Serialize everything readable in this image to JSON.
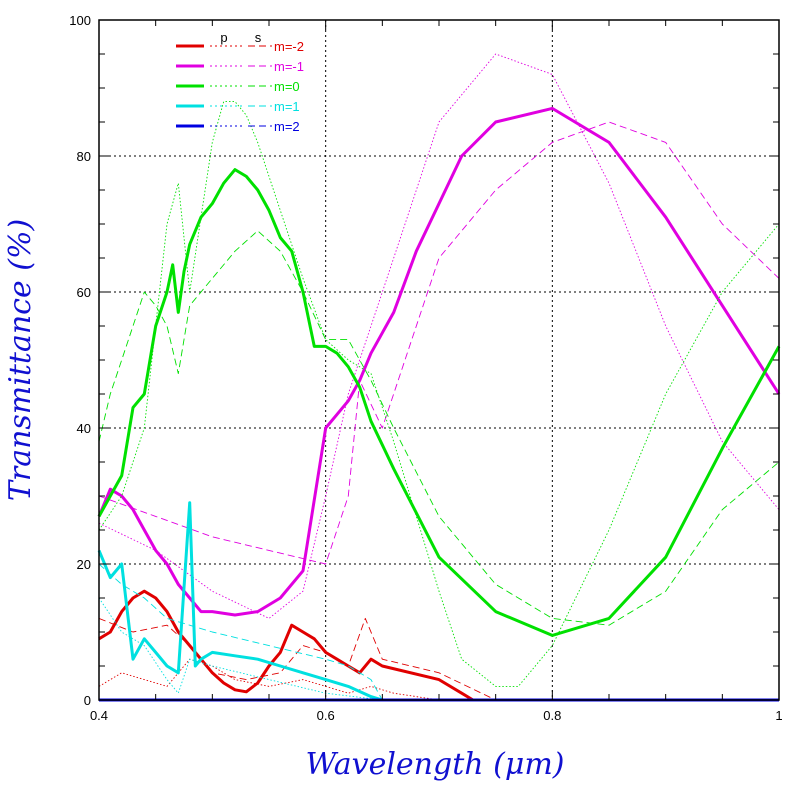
{
  "chart_data": {
    "type": "line",
    "xlabel": "Wavelength (μm)",
    "ylabel": "Transmittance (%)",
    "xlim": [
      0.4,
      1.0
    ],
    "ylim": [
      0,
      100
    ],
    "x_ticks": [
      "0.4",
      "0.6",
      "0.8",
      "1"
    ],
    "y_ticks": [
      "0",
      "20",
      "40",
      "60",
      "80",
      "100"
    ],
    "grid": true,
    "legend": {
      "placement": "top-left",
      "columns": [
        "p",
        "s"
      ]
    },
    "series": [
      {
        "name": "m=-2",
        "color": "#e00000",
        "p": {
          "x": [
            0.4,
            0.41,
            0.42,
            0.43,
            0.44,
            0.45,
            0.46,
            0.47,
            0.48,
            0.49,
            0.5,
            0.51,
            0.52,
            0.53,
            0.54,
            0.55,
            0.56,
            0.57,
            0.58,
            0.59,
            0.6,
            0.61,
            0.62,
            0.63,
            0.64,
            0.65,
            0.7,
            0.72,
            0.73,
            1.0
          ],
          "y": [
            9,
            10,
            13,
            15,
            16,
            15,
            13,
            10,
            8,
            6,
            4,
            2.5,
            1.5,
            1.2,
            2.5,
            5,
            7,
            11,
            10,
            9,
            7,
            6,
            5,
            4,
            6,
            5,
            3,
            1,
            0,
            0
          ]
        },
        "s": {
          "x": [
            0.4,
            0.43,
            0.46,
            0.48,
            0.5,
            0.53,
            0.56,
            0.58,
            0.6,
            0.62,
            0.635,
            0.65,
            0.7,
            0.75,
            1.0
          ],
          "y": [
            12,
            10,
            11,
            8,
            4,
            3,
            4,
            8,
            7,
            5,
            12,
            6,
            4,
            0,
            0
          ]
        },
        "t": {
          "x": [
            0.4,
            0.42,
            0.44,
            0.46,
            0.48,
            0.5,
            0.52,
            0.55,
            0.58,
            0.6,
            0.62,
            0.64,
            0.66,
            0.7,
            1.0
          ],
          "y": [
            2,
            4,
            3,
            2,
            6,
            5,
            3,
            2,
            3,
            2,
            1,
            2,
            1,
            0,
            0
          ]
        }
      },
      {
        "name": "m=-1",
        "color": "#e000e0",
        "p": {
          "x": [
            0.4,
            0.41,
            0.42,
            0.43,
            0.44,
            0.45,
            0.46,
            0.47,
            0.48,
            0.49,
            0.5,
            0.52,
            0.54,
            0.56,
            0.58,
            0.6,
            0.61,
            0.62,
            0.63,
            0.64,
            0.66,
            0.68,
            0.7,
            0.72,
            0.75,
            0.8,
            0.85,
            0.9,
            0.95,
            1.0
          ],
          "y": [
            27,
            31,
            30,
            28,
            25,
            22,
            20,
            17,
            15,
            13,
            13,
            12.5,
            13,
            15,
            19,
            40,
            42,
            44,
            47,
            51,
            57,
            66,
            73,
            80,
            85,
            87,
            82,
            71,
            58,
            45
          ]
        },
        "s": {
          "x": [
            0.4,
            0.45,
            0.5,
            0.55,
            0.6,
            0.62,
            0.63,
            0.65,
            0.7,
            0.75,
            0.8,
            0.85,
            0.9,
            0.95,
            1.0
          ],
          "y": [
            30,
            27,
            24,
            22,
            20,
            30,
            47,
            40,
            65,
            75,
            82,
            85,
            82,
            70,
            62
          ]
        },
        "t": {
          "x": [
            0.4,
            0.45,
            0.5,
            0.55,
            0.58,
            0.6,
            0.62,
            0.64,
            0.66,
            0.7,
            0.75,
            0.8,
            0.85,
            0.9,
            0.95,
            1.0
          ],
          "y": [
            26,
            22,
            16,
            12,
            16,
            30,
            45,
            55,
            65,
            85,
            95,
            92,
            76,
            55,
            38,
            28
          ]
        }
      },
      {
        "name": "m=0",
        "color": "#00e000",
        "p": {
          "x": [
            0.4,
            0.41,
            0.42,
            0.43,
            0.44,
            0.45,
            0.46,
            0.465,
            0.47,
            0.475,
            0.48,
            0.49,
            0.5,
            0.51,
            0.52,
            0.53,
            0.54,
            0.55,
            0.56,
            0.57,
            0.58,
            0.59,
            0.6,
            0.61,
            0.62,
            0.63,
            0.64,
            0.66,
            0.7,
            0.75,
            0.8,
            0.85,
            0.9,
            0.95,
            1.0
          ],
          "y": [
            27,
            30,
            33,
            43,
            45,
            55,
            60,
            64,
            57,
            63,
            67,
            71,
            73,
            76,
            78,
            77,
            75,
            72,
            68,
            66,
            60,
            52,
            52,
            51,
            49,
            46,
            41,
            34,
            21,
            13,
            9.5,
            12,
            21,
            37,
            52
          ]
        },
        "s": {
          "x": [
            0.4,
            0.41,
            0.42,
            0.43,
            0.44,
            0.45,
            0.46,
            0.47,
            0.48,
            0.5,
            0.52,
            0.54,
            0.56,
            0.58,
            0.6,
            0.62,
            0.64,
            0.66,
            0.7,
            0.75,
            0.8,
            0.85,
            0.9,
            0.95,
            1.0
          ],
          "y": [
            38,
            45,
            50,
            55,
            60,
            58,
            55,
            48,
            58,
            62,
            66,
            69,
            66,
            60,
            53,
            53,
            47,
            40,
            27,
            17,
            12,
            11,
            16,
            28,
            35
          ]
        },
        "t": {
          "x": [
            0.4,
            0.42,
            0.44,
            0.46,
            0.47,
            0.48,
            0.5,
            0.51,
            0.52,
            0.53,
            0.54,
            0.56,
            0.58,
            0.6,
            0.62,
            0.64,
            0.66,
            0.7,
            0.72,
            0.75,
            0.77,
            0.8,
            0.85,
            0.9,
            0.95,
            1.0
          ],
          "y": [
            25,
            30,
            40,
            70,
            76,
            60,
            82,
            88,
            88,
            86,
            82,
            72,
            62,
            53,
            50,
            48,
            38,
            16,
            6,
            2,
            2,
            8,
            25,
            45,
            60,
            70
          ]
        }
      },
      {
        "name": "m=1",
        "color": "#00e0e0",
        "p": {
          "x": [
            0.4,
            0.41,
            0.42,
            0.43,
            0.44,
            0.45,
            0.46,
            0.47,
            0.48,
            0.485,
            0.49,
            0.5,
            0.52,
            0.54,
            0.56,
            0.58,
            0.6,
            0.62,
            0.64,
            0.65,
            1.0
          ],
          "y": [
            22,
            18,
            20,
            6,
            9,
            7,
            5,
            4,
            29,
            5,
            6,
            7,
            6.5,
            6,
            5,
            4,
            3,
            2,
            0.5,
            0,
            0
          ]
        },
        "s": {
          "x": [
            0.4,
            0.42,
            0.44,
            0.46,
            0.48,
            0.5,
            0.55,
            0.6,
            0.62,
            0.64,
            0.65,
            1.0
          ],
          "y": [
            20,
            17,
            15,
            12,
            11,
            10,
            8,
            6,
            5,
            3,
            0,
            0
          ]
        },
        "t": {
          "x": [
            0.4,
            0.42,
            0.44,
            0.46,
            0.47,
            0.48,
            0.5,
            0.55,
            0.6,
            0.65,
            1.0
          ],
          "y": [
            15,
            10,
            8,
            3,
            1,
            6,
            5,
            3,
            1,
            0,
            0
          ]
        }
      },
      {
        "name": "m=2",
        "color": "#0000e0",
        "p": {
          "x": [
            0.4,
            1.0
          ],
          "y": [
            0,
            0
          ]
        },
        "s": {
          "x": [
            0.4,
            1.0
          ],
          "y": [
            0,
            0
          ]
        },
        "t": {
          "x": [
            0.4,
            1.0
          ],
          "y": [
            0,
            0
          ]
        }
      }
    ]
  }
}
